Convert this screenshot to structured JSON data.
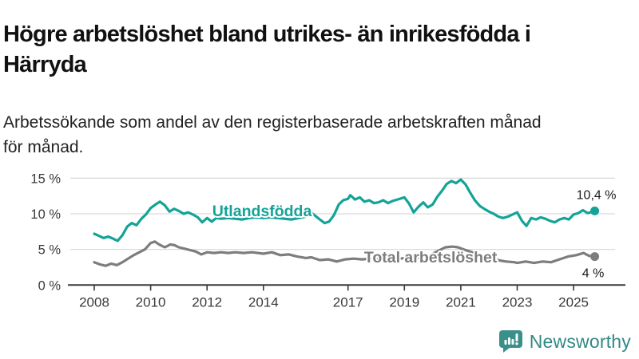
{
  "header": {
    "title_lines": [
      "Högre arbetslöshet bland utrikes- än inrikesfödda i",
      "Härryda"
    ],
    "subtitle_lines": [
      "Arbetssökande som andel av den registerbaserade arbetskraften månad",
      "för månad."
    ]
  },
  "footer": {
    "brand": "Newsworthy",
    "brand_color": "#318984",
    "logo_icon": "newsworthy-speech-bubble-bar-chart-icon"
  },
  "colors": {
    "series_utlandsfodda": "#14a398",
    "series_total": "#7d7d7d",
    "grid": "#dcdcdc",
    "axis": "#3a3a3a",
    "axis_text": "#3a3a3a",
    "end_label_text": "#1a1a1a"
  },
  "chart_data": {
    "type": "line",
    "title": "Högre arbetslöshet bland utrikes- än inrikesfödda i Härryda",
    "subtitle": "Arbetssökande som andel av den registerbaserade arbetskraften månad för månad.",
    "xlabel": "",
    "ylabel": "",
    "xlim": [
      2008,
      2025.83
    ],
    "ylim": [
      0,
      15
    ],
    "grid": true,
    "legend_position": "inline-labels",
    "yticks": [
      {
        "value": 0,
        "label": "0 %"
      },
      {
        "value": 5,
        "label": "5 %"
      },
      {
        "value": 10,
        "label": "10 %"
      },
      {
        "value": 15,
        "label": "15 %"
      }
    ],
    "xticks": [
      {
        "value": 2008,
        "label": "2008"
      },
      {
        "value": 2010,
        "label": "2010"
      },
      {
        "value": 2012,
        "label": "2012"
      },
      {
        "value": 2014,
        "label": "2014"
      },
      {
        "value": 2017,
        "label": "2017"
      },
      {
        "value": 2019,
        "label": "2019"
      },
      {
        "value": 2021,
        "label": "2021"
      },
      {
        "value": 2023,
        "label": "2023"
      },
      {
        "value": 2025,
        "label": "2025"
      }
    ],
    "series": [
      {
        "name": "Total arbetslöshet",
        "color": "#7d7d7d",
        "end_label": "4 %",
        "end_value": 4.0,
        "inline_label": {
          "x": 2019.93,
          "y": 3.95
        },
        "end_label_offset": {
          "dx": -2,
          "dy": 26
        },
        "points": [
          [
            2008.0,
            3.2
          ],
          [
            2008.2,
            2.9
          ],
          [
            2008.4,
            2.7
          ],
          [
            2008.6,
            3.0
          ],
          [
            2008.8,
            2.8
          ],
          [
            2009.0,
            3.2
          ],
          [
            2009.2,
            3.7
          ],
          [
            2009.4,
            4.2
          ],
          [
            2009.6,
            4.6
          ],
          [
            2009.8,
            5.0
          ],
          [
            2010.0,
            5.9
          ],
          [
            2010.15,
            6.1
          ],
          [
            2010.3,
            5.7
          ],
          [
            2010.5,
            5.3
          ],
          [
            2010.7,
            5.7
          ],
          [
            2010.85,
            5.6
          ],
          [
            2011.0,
            5.3
          ],
          [
            2011.2,
            5.1
          ],
          [
            2011.4,
            4.9
          ],
          [
            2011.6,
            4.7
          ],
          [
            2011.8,
            4.3
          ],
          [
            2012.0,
            4.6
          ],
          [
            2012.25,
            4.5
          ],
          [
            2012.5,
            4.6
          ],
          [
            2012.75,
            4.5
          ],
          [
            2013.0,
            4.6
          ],
          [
            2013.3,
            4.5
          ],
          [
            2013.6,
            4.6
          ],
          [
            2014.0,
            4.4
          ],
          [
            2014.3,
            4.6
          ],
          [
            2014.6,
            4.2
          ],
          [
            2014.9,
            4.3
          ],
          [
            2015.2,
            4.0
          ],
          [
            2015.5,
            3.8
          ],
          [
            2015.7,
            3.9
          ],
          [
            2016.0,
            3.5
          ],
          [
            2016.3,
            3.6
          ],
          [
            2016.6,
            3.3
          ],
          [
            2016.9,
            3.6
          ],
          [
            2017.2,
            3.7
          ],
          [
            2017.5,
            3.6
          ],
          [
            2017.8,
            3.7
          ],
          [
            2018.1,
            3.6
          ],
          [
            2018.4,
            3.7
          ],
          [
            2018.7,
            3.6
          ],
          [
            2019.0,
            3.8
          ],
          [
            2019.3,
            3.7
          ],
          [
            2019.6,
            3.9
          ],
          [
            2019.9,
            4.2
          ],
          [
            2020.2,
            4.8
          ],
          [
            2020.45,
            5.3
          ],
          [
            2020.7,
            5.4
          ],
          [
            2020.9,
            5.3
          ],
          [
            2021.1,
            5.0
          ],
          [
            2021.4,
            4.6
          ],
          [
            2021.7,
            4.1
          ],
          [
            2022.0,
            3.8
          ],
          [
            2022.3,
            3.5
          ],
          [
            2022.6,
            3.3
          ],
          [
            2022.9,
            3.2
          ],
          [
            2023.0,
            3.1
          ],
          [
            2023.3,
            3.3
          ],
          [
            2023.6,
            3.1
          ],
          [
            2023.9,
            3.3
          ],
          [
            2024.2,
            3.2
          ],
          [
            2024.5,
            3.6
          ],
          [
            2024.8,
            4.0
          ],
          [
            2025.1,
            4.2
          ],
          [
            2025.35,
            4.5
          ],
          [
            2025.55,
            4.1
          ],
          [
            2025.75,
            4.0
          ]
        ]
      },
      {
        "name": "Utlandsfödda",
        "color": "#14a398",
        "end_label": "10,4 %",
        "end_value": 10.4,
        "inline_label": {
          "x": 2013.95,
          "y": 10.45
        },
        "end_label_offset": {
          "dx": 2,
          "dy": -15
        },
        "points": [
          [
            2008.0,
            7.2
          ],
          [
            2008.17,
            6.9
          ],
          [
            2008.33,
            6.6
          ],
          [
            2008.5,
            6.8
          ],
          [
            2008.67,
            6.5
          ],
          [
            2008.83,
            6.2
          ],
          [
            2009.0,
            7.0
          ],
          [
            2009.17,
            8.2
          ],
          [
            2009.33,
            8.7
          ],
          [
            2009.5,
            8.4
          ],
          [
            2009.67,
            9.3
          ],
          [
            2009.83,
            9.9
          ],
          [
            2010.0,
            10.8
          ],
          [
            2010.17,
            11.3
          ],
          [
            2010.33,
            11.7
          ],
          [
            2010.5,
            11.2
          ],
          [
            2010.67,
            10.3
          ],
          [
            2010.83,
            10.7
          ],
          [
            2011.0,
            10.4
          ],
          [
            2011.17,
            10.0
          ],
          [
            2011.33,
            10.2
          ],
          [
            2011.5,
            9.9
          ],
          [
            2011.67,
            9.5
          ],
          [
            2011.83,
            8.8
          ],
          [
            2012.0,
            9.4
          ],
          [
            2012.17,
            8.9
          ],
          [
            2012.33,
            9.4
          ],
          [
            2012.5,
            9.3
          ],
          [
            2012.75,
            9.4
          ],
          [
            2013.0,
            9.3
          ],
          [
            2013.25,
            9.2
          ],
          [
            2013.5,
            9.4
          ],
          [
            2013.75,
            9.5
          ],
          [
            2014.0,
            9.4
          ],
          [
            2014.25,
            9.5
          ],
          [
            2014.5,
            9.4
          ],
          [
            2014.75,
            9.3
          ],
          [
            2015.0,
            9.2
          ],
          [
            2015.25,
            9.4
          ],
          [
            2015.5,
            9.6
          ],
          [
            2015.75,
            10.0
          ],
          [
            2016.0,
            9.2
          ],
          [
            2016.17,
            8.7
          ],
          [
            2016.33,
            8.9
          ],
          [
            2016.5,
            9.8
          ],
          [
            2016.67,
            11.3
          ],
          [
            2016.83,
            11.9
          ],
          [
            2017.0,
            12.1
          ],
          [
            2017.08,
            12.6
          ],
          [
            2017.25,
            12.0
          ],
          [
            2017.42,
            12.3
          ],
          [
            2017.58,
            11.7
          ],
          [
            2017.75,
            11.9
          ],
          [
            2017.92,
            11.5
          ],
          [
            2018.08,
            11.6
          ],
          [
            2018.25,
            11.9
          ],
          [
            2018.42,
            11.5
          ],
          [
            2018.58,
            11.8
          ],
          [
            2018.75,
            12.0
          ],
          [
            2018.92,
            12.2
          ],
          [
            2019.0,
            12.3
          ],
          [
            2019.17,
            11.4
          ],
          [
            2019.33,
            10.2
          ],
          [
            2019.5,
            11.0
          ],
          [
            2019.67,
            11.6
          ],
          [
            2019.83,
            10.9
          ],
          [
            2020.0,
            11.3
          ],
          [
            2020.17,
            12.4
          ],
          [
            2020.33,
            13.2
          ],
          [
            2020.5,
            14.2
          ],
          [
            2020.67,
            14.6
          ],
          [
            2020.83,
            14.3
          ],
          [
            2021.0,
            14.8
          ],
          [
            2021.17,
            14.1
          ],
          [
            2021.33,
            13.0
          ],
          [
            2021.5,
            11.9
          ],
          [
            2021.67,
            11.1
          ],
          [
            2021.83,
            10.7
          ],
          [
            2022.0,
            10.3
          ],
          [
            2022.17,
            10.0
          ],
          [
            2022.33,
            9.6
          ],
          [
            2022.5,
            9.4
          ],
          [
            2022.67,
            9.6
          ],
          [
            2022.83,
            9.9
          ],
          [
            2023.0,
            10.2
          ],
          [
            2023.17,
            9.0
          ],
          [
            2023.33,
            8.3
          ],
          [
            2023.5,
            9.4
          ],
          [
            2023.67,
            9.2
          ],
          [
            2023.83,
            9.5
          ],
          [
            2024.0,
            9.3
          ],
          [
            2024.17,
            9.0
          ],
          [
            2024.33,
            8.8
          ],
          [
            2024.5,
            9.2
          ],
          [
            2024.67,
            9.4
          ],
          [
            2024.83,
            9.2
          ],
          [
            2025.0,
            9.9
          ],
          [
            2025.17,
            10.1
          ],
          [
            2025.33,
            10.5
          ],
          [
            2025.5,
            10.1
          ],
          [
            2025.67,
            10.3
          ],
          [
            2025.75,
            10.4
          ]
        ]
      }
    ]
  }
}
